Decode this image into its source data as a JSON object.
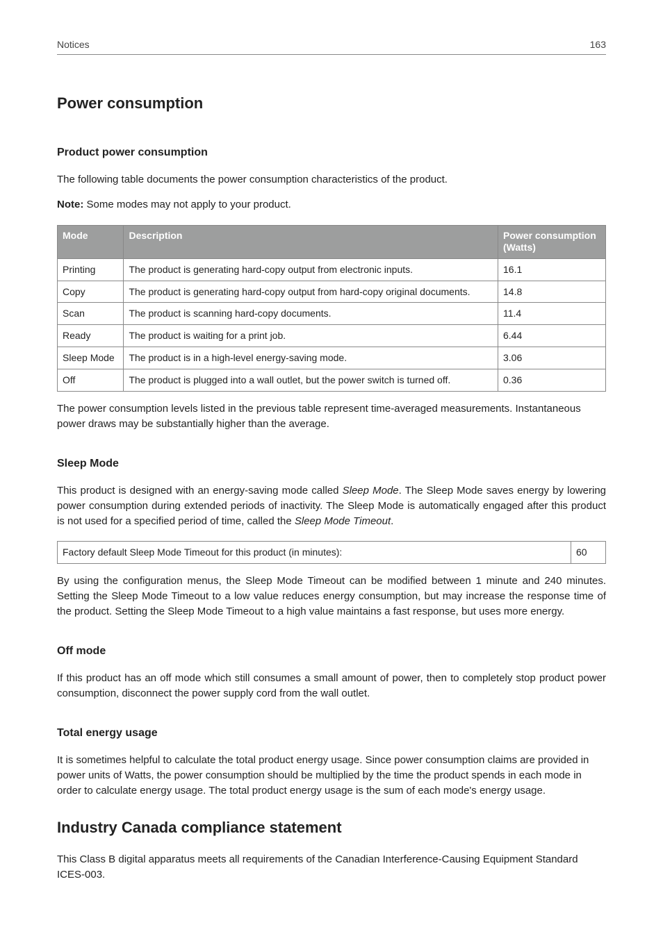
{
  "header": {
    "section": "Notices",
    "page_number": "163"
  },
  "h1": "Power consumption",
  "s1": {
    "heading": "Product power consumption",
    "p1": "The following table documents the power consumption characteristics of the product.",
    "note_label": "Note:",
    "note_text": " Some modes may not apply to your product.",
    "table": {
      "columns": {
        "mode": "Mode",
        "desc": "Description",
        "power": "Power consumption (Watts)"
      },
      "rows": [
        {
          "mode": "Printing",
          "desc": "The product is generating hard-copy output from electronic inputs.",
          "power": "16.1"
        },
        {
          "mode": "Copy",
          "desc": "The product is generating hard-copy output from hard-copy original documents.",
          "power": "14.8"
        },
        {
          "mode": "Scan",
          "desc": "The product is scanning hard-copy documents.",
          "power": "11.4"
        },
        {
          "mode": "Ready",
          "desc": "The product is waiting for a print job.",
          "power": "6.44"
        },
        {
          "mode": "Sleep Mode",
          "desc": "The product is in a high-level energy-saving mode.",
          "power": "3.06"
        },
        {
          "mode": "Off",
          "desc": "The product is plugged into a wall outlet, but the power switch is turned off.",
          "power": "0.36"
        }
      ]
    },
    "p2": "The power consumption levels listed in the previous table represent time-averaged measurements. Instantaneous power draws may be substantially higher than the average."
  },
  "s2": {
    "heading": "Sleep Mode",
    "p1a": "This product is designed with an energy-saving mode called ",
    "p1b": "Sleep Mode",
    "p1c": ". The Sleep Mode saves energy by lowering power consumption during extended periods of inactivity. The Sleep Mode is automatically engaged after this product is not used for a specified period of time, called the ",
    "p1d": "Sleep Mode Timeout",
    "p1e": ".",
    "table": {
      "label": "Factory default Sleep Mode Timeout for this product (in minutes):",
      "value": "60"
    },
    "p2": "By using the configuration menus, the Sleep Mode Timeout can be modified between 1 minute and 240 minutes. Setting the Sleep Mode Timeout to a low value reduces energy consumption, but may increase the response time of the product. Setting the Sleep Mode Timeout to a high value maintains a fast response, but uses more energy."
  },
  "s3": {
    "heading": "Off mode",
    "p1": "If this product has an off mode which still consumes a small amount of power, then to completely stop product power consumption, disconnect the power supply cord from the wall outlet."
  },
  "s4": {
    "heading": "Total energy usage",
    "p1": "It is sometimes helpful to calculate the total product energy usage. Since power consumption claims are provided in power units of Watts, the power consumption should be multiplied by the time the product spends in each mode in order to calculate energy usage. The total product energy usage is the sum of each mode's energy usage."
  },
  "h2": "Industry Canada compliance statement",
  "s5": {
    "p1": "This Class B digital apparatus meets all requirements of the Canadian Interference-Causing Equipment Standard ICES-003."
  }
}
